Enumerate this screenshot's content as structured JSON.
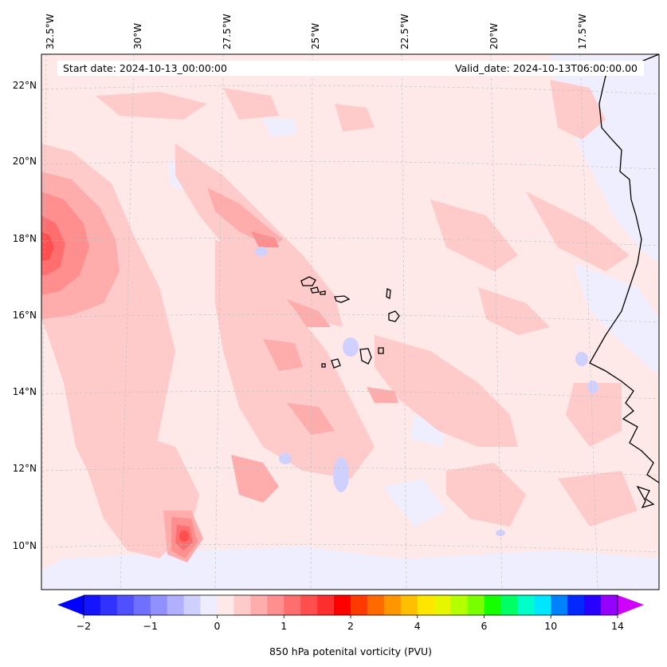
{
  "map": {
    "start_date": "Start date: 2024-10-13_00:00:00",
    "valid_date": "Valid_date: 2024-10-13T06:00:00.00",
    "lon_labels": [
      "32.5°W",
      "30°W",
      "27.5°W",
      "25°W",
      "22.5°W",
      "20°W",
      "17.5°W"
    ],
    "lat_labels": [
      "22°N",
      "20°N",
      "18°N",
      "16°N",
      "14°N",
      "12°N",
      "10°N"
    ],
    "field_name": "850 hPa potential vorticity",
    "background_color": "#ffe8e8",
    "coastline_color": "#000000"
  },
  "colorbar": {
    "label": "850 hPa potenital vorticity (PVU)",
    "tick_labels": [
      "−2",
      "−1",
      "0",
      "1",
      "2",
      "4",
      "6",
      "10",
      "14"
    ],
    "under_color": "#0000ff",
    "over_color": "#d000ff",
    "colors": [
      "#1414ff",
      "#3232ff",
      "#5050ff",
      "#7070ff",
      "#9090ff",
      "#b0b0ff",
      "#d0d0ff",
      "#ededff",
      "#ffe8e8",
      "#ffcaca",
      "#ffacac",
      "#ff8e8e",
      "#ff6e6e",
      "#ff4e4e",
      "#ff2e2e",
      "#ff0000",
      "#ff3a00",
      "#ff6a00",
      "#ff9600",
      "#ffbe00",
      "#ffe600",
      "#e6f500",
      "#b4ff00",
      "#78ff00",
      "#14ff00",
      "#00ff64",
      "#00ffc8",
      "#00e6ff",
      "#0082ff",
      "#0028ff",
      "#2800ff",
      "#9600ff"
    ]
  }
}
